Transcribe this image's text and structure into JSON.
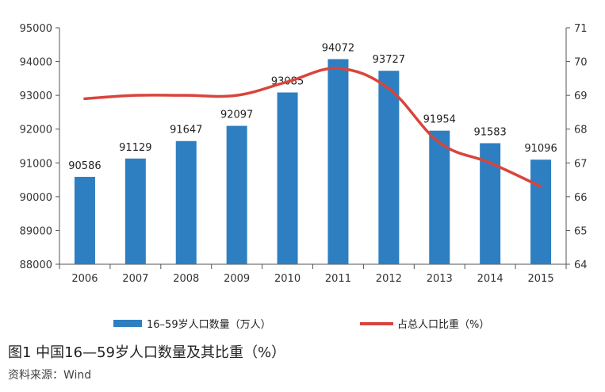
{
  "caption": "图1  中国16—59岁人口数量及其比重（%）",
  "source": "资料来源：Wind",
  "chart_data": {
    "type": "bar+line",
    "categories": [
      "2006",
      "2007",
      "2008",
      "2009",
      "2010",
      "2011",
      "2012",
      "2013",
      "2014",
      "2015"
    ],
    "series": [
      {
        "name": "16–59岁人口数量（万人）",
        "type": "bar",
        "axis": "left",
        "color": "#2E7FC1",
        "values": [
          90586,
          91129,
          91647,
          92097,
          93085,
          94072,
          93727,
          91954,
          91583,
          91096
        ],
        "labels": [
          "90586",
          "91129",
          "91647",
          "92097",
          "93085",
          "94072",
          "93727",
          "91954",
          "91583",
          "91096"
        ]
      },
      {
        "name": "占总人口比重（%）",
        "type": "line",
        "axis": "right",
        "color": "#D9443C",
        "values": [
          68.9,
          69.0,
          69.0,
          69.0,
          69.4,
          69.8,
          69.2,
          67.6,
          67.0,
          66.3
        ]
      }
    ],
    "y_left": {
      "min": 88000,
      "max": 95000,
      "ticks": [
        "88000",
        "89000",
        "90000",
        "91000",
        "92000",
        "93000",
        "94000",
        "95000"
      ]
    },
    "y_right": {
      "min": 64,
      "max": 71,
      "ticks": [
        "64",
        "65",
        "66",
        "67",
        "68",
        "69",
        "70",
        "71"
      ]
    },
    "grid": false,
    "legend_position": "bottom"
  }
}
